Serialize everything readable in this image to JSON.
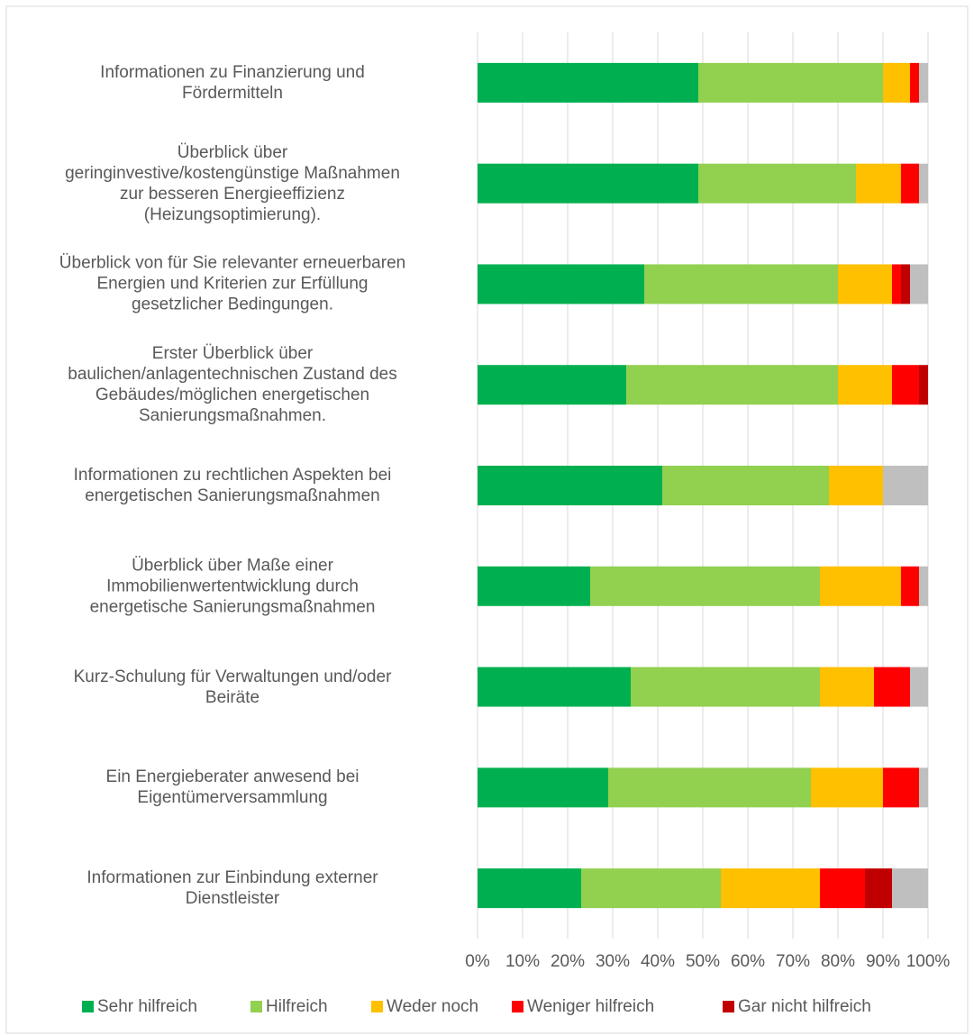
{
  "chart_data": {
    "type": "stacked_barh",
    "categories": [
      "Informationen zu Finanzierung und\nFördermitteln",
      "Überblick über\ngeringinvestive/kostengünstige Maßnahmen\nzur besseren Energieeffizienz\n(Heizungsoptimierung).",
      "Überblick von für Sie relevanter erneuerbaren\nEnergien und Kriterien zur Erfüllung\ngesetzlicher Bedingungen.",
      "Erster Überblick über\nbaulichen/anlagentechnischen Zustand des\nGebäudes/möglichen energetischen\nSanierungsmaßnahmen.",
      "Informationen zu rechtlichen Aspekten bei\nenergetischen Sanierungsmaßnahmen",
      "Überblick über Maße einer\nImmobilienwertentwicklung durch\nenergetische Sanierungsmaßnahmen",
      "Kurz-Schulung für Verwaltungen und/oder\nBeiräte",
      "Ein Energieberater anwesend bei\nEigentümerversammlung",
      "Informationen zur Einbindung externer\nDienstleister"
    ],
    "series": [
      {
        "name": "Sehr hilfreich",
        "color": "#00b050",
        "values": [
          49,
          49,
          37,
          33,
          41,
          25,
          34,
          29,
          23
        ]
      },
      {
        "name": "Hilfreich",
        "color": "#92d050",
        "values": [
          41,
          35,
          43,
          47,
          37,
          51,
          42,
          45,
          31
        ]
      },
      {
        "name": "Weder noch",
        "color": "#ffc000",
        "values": [
          6,
          10,
          12,
          12,
          12,
          18,
          12,
          16,
          22
        ]
      },
      {
        "name": "Weniger hilfreich",
        "color": "#ff0000",
        "values": [
          2,
          4,
          2,
          6,
          0,
          4,
          8,
          8,
          10
        ]
      },
      {
        "name": "Gar nicht hilfreich",
        "color": "#c00000",
        "values": [
          0,
          0,
          2,
          2,
          0,
          0,
          0,
          0,
          6
        ]
      },
      {
        "color": "#bfbfbf",
        "values": [
          2,
          2,
          4,
          0,
          10,
          2,
          4,
          2,
          8
        ]
      }
    ],
    "xlim": [
      0,
      100
    ],
    "xticks": [
      {
        "value": 0,
        "label": "0%"
      },
      {
        "value": 10,
        "label": "10%"
      },
      {
        "value": 20,
        "label": "20%"
      },
      {
        "value": 30,
        "label": "30%"
      },
      {
        "value": 40,
        "label": "40%"
      },
      {
        "value": 50,
        "label": "50%"
      },
      {
        "value": 60,
        "label": "60%"
      },
      {
        "value": 70,
        "label": "70%"
      },
      {
        "value": 80,
        "label": "80%"
      },
      {
        "value": 90,
        "label": "90%"
      },
      {
        "value": 100,
        "label": "100%"
      }
    ],
    "grid": true,
    "legend": "bottom"
  }
}
